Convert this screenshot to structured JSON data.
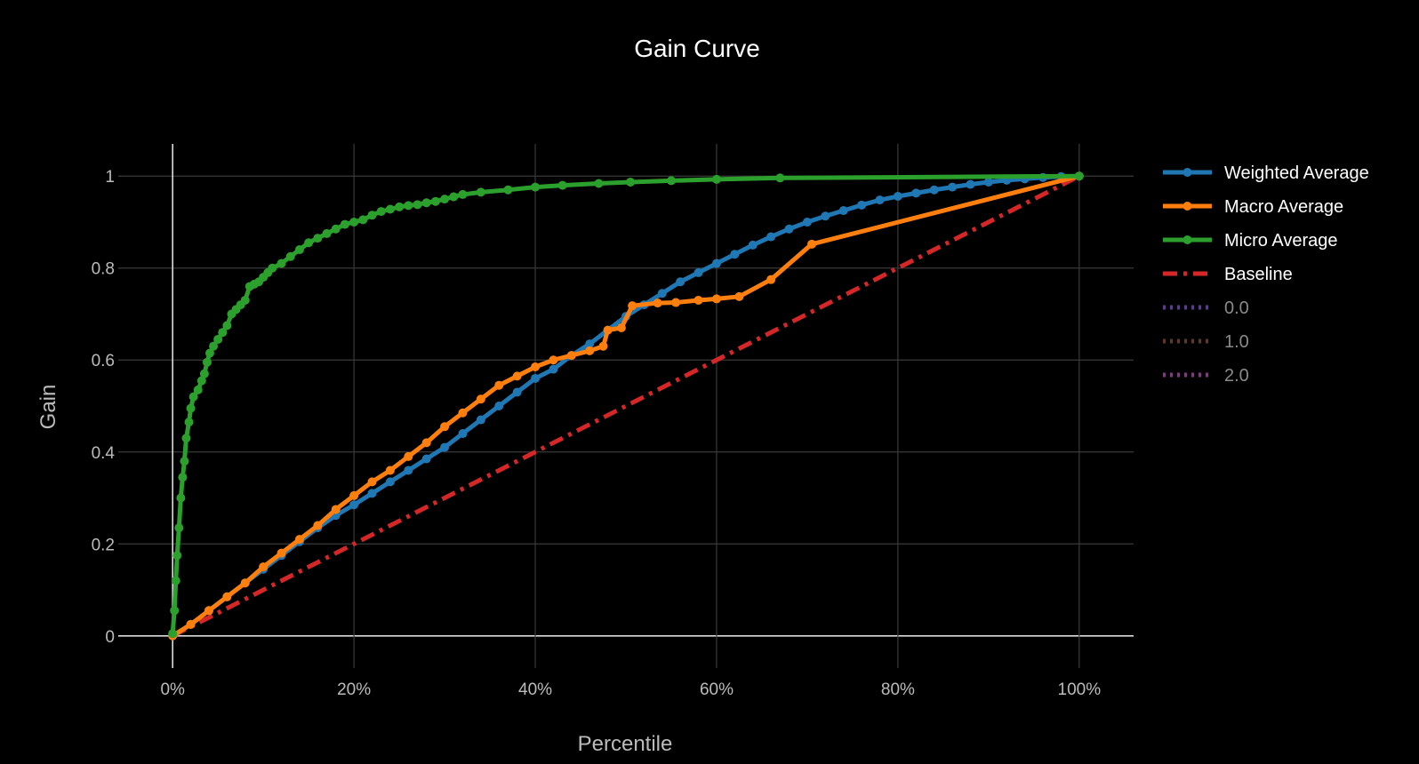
{
  "chart_data": {
    "type": "line",
    "title": "Gain Curve",
    "xlabel": "Percentile",
    "ylabel": "Gain",
    "xlim": [
      -6,
      106
    ],
    "ylim": [
      -0.07,
      1.07
    ],
    "x_ticks": [
      {
        "value": 0,
        "label": "0%"
      },
      {
        "value": 20,
        "label": "20%"
      },
      {
        "value": 40,
        "label": "40%"
      },
      {
        "value": 60,
        "label": "60%"
      },
      {
        "value": 80,
        "label": "80%"
      },
      {
        "value": 100,
        "label": "100%"
      }
    ],
    "y_ticks": [
      {
        "value": 0,
        "label": "0"
      },
      {
        "value": 0.2,
        "label": "0.2"
      },
      {
        "value": 0.4,
        "label": "0.4"
      },
      {
        "value": 0.6,
        "label": "0.6"
      },
      {
        "value": 0.8,
        "label": "0.8"
      },
      {
        "value": 1,
        "label": "1"
      }
    ],
    "grid": true,
    "legend_position": "right",
    "series": [
      {
        "name": "Weighted Average",
        "color": "#1f77b4",
        "style": "solid",
        "markers": true,
        "legend_text_color": "#ffffff",
        "points": [
          [
            0,
            0
          ],
          [
            2,
            0.025
          ],
          [
            4,
            0.055
          ],
          [
            6,
            0.085
          ],
          [
            8,
            0.115
          ],
          [
            10,
            0.145
          ],
          [
            12,
            0.175
          ],
          [
            14,
            0.205
          ],
          [
            16,
            0.235
          ],
          [
            18,
            0.262
          ],
          [
            20,
            0.285
          ],
          [
            22,
            0.31
          ],
          [
            24,
            0.335
          ],
          [
            26,
            0.36
          ],
          [
            28,
            0.385
          ],
          [
            30,
            0.41
          ],
          [
            32,
            0.44
          ],
          [
            34,
            0.47
          ],
          [
            36,
            0.5
          ],
          [
            38,
            0.53
          ],
          [
            40,
            0.56
          ],
          [
            42,
            0.58
          ],
          [
            44,
            0.61
          ],
          [
            46,
            0.635
          ],
          [
            48,
            0.665
          ],
          [
            50,
            0.695
          ],
          [
            52,
            0.72
          ],
          [
            54,
            0.745
          ],
          [
            56,
            0.77
          ],
          [
            58,
            0.79
          ],
          [
            60,
            0.81
          ],
          [
            62,
            0.83
          ],
          [
            64,
            0.85
          ],
          [
            66,
            0.868
          ],
          [
            68,
            0.885
          ],
          [
            70,
            0.9
          ],
          [
            72,
            0.913
          ],
          [
            74,
            0.925
          ],
          [
            76,
            0.937
          ],
          [
            78,
            0.948
          ],
          [
            80,
            0.956
          ],
          [
            82,
            0.963
          ],
          [
            84,
            0.97
          ],
          [
            86,
            0.976
          ],
          [
            88,
            0.982
          ],
          [
            90,
            0.987
          ],
          [
            92,
            0.991
          ],
          [
            94,
            0.994
          ],
          [
            96,
            0.997
          ],
          [
            98,
            0.999
          ],
          [
            100,
            1
          ]
        ]
      },
      {
        "name": "Macro Average",
        "color": "#ff7f0e",
        "style": "solid",
        "markers": true,
        "legend_text_color": "#ffffff",
        "points": [
          [
            0,
            0
          ],
          [
            2,
            0.025
          ],
          [
            4,
            0.055
          ],
          [
            6,
            0.085
          ],
          [
            8,
            0.115
          ],
          [
            10,
            0.15
          ],
          [
            12,
            0.18
          ],
          [
            14,
            0.21
          ],
          [
            16,
            0.24
          ],
          [
            18,
            0.275
          ],
          [
            20,
            0.305
          ],
          [
            22,
            0.335
          ],
          [
            24,
            0.36
          ],
          [
            26,
            0.39
          ],
          [
            28,
            0.42
          ],
          [
            30,
            0.455
          ],
          [
            32,
            0.485
          ],
          [
            34,
            0.515
          ],
          [
            36,
            0.545
          ],
          [
            38,
            0.565
          ],
          [
            40,
            0.585
          ],
          [
            42,
            0.6
          ],
          [
            44,
            0.61
          ],
          [
            46,
            0.62
          ],
          [
            47.5,
            0.63
          ],
          [
            48,
            0.665
          ],
          [
            49.5,
            0.67
          ],
          [
            50.7,
            0.718
          ],
          [
            53.5,
            0.724
          ],
          [
            55.5,
            0.725
          ],
          [
            58,
            0.73
          ],
          [
            60,
            0.733
          ],
          [
            62.5,
            0.738
          ],
          [
            66,
            0.775
          ],
          [
            70.5,
            0.852
          ],
          [
            100,
            1
          ]
        ]
      },
      {
        "name": "Micro Average",
        "color": "#2ca02c",
        "style": "solid",
        "markers": true,
        "legend_text_color": "#ffffff",
        "points": [
          [
            0,
            0.005
          ],
          [
            0.2,
            0.055
          ],
          [
            0.35,
            0.12
          ],
          [
            0.5,
            0.175
          ],
          [
            0.7,
            0.235
          ],
          [
            0.9,
            0.3
          ],
          [
            1.1,
            0.345
          ],
          [
            1.3,
            0.38
          ],
          [
            1.5,
            0.43
          ],
          [
            1.8,
            0.465
          ],
          [
            2.0,
            0.495
          ],
          [
            2.3,
            0.52
          ],
          [
            2.8,
            0.535
          ],
          [
            3.2,
            0.555
          ],
          [
            3.5,
            0.57
          ],
          [
            3.8,
            0.595
          ],
          [
            4.1,
            0.615
          ],
          [
            4.5,
            0.63
          ],
          [
            5,
            0.645
          ],
          [
            5.5,
            0.66
          ],
          [
            6,
            0.675
          ],
          [
            6.5,
            0.7
          ],
          [
            7,
            0.71
          ],
          [
            7.5,
            0.72
          ],
          [
            8,
            0.73
          ],
          [
            8.5,
            0.76
          ],
          [
            9,
            0.765
          ],
          [
            9.5,
            0.77
          ],
          [
            10,
            0.78
          ],
          [
            10.5,
            0.79
          ],
          [
            11,
            0.8
          ],
          [
            12,
            0.81
          ],
          [
            13,
            0.825
          ],
          [
            14,
            0.84
          ],
          [
            15,
            0.855
          ],
          [
            16,
            0.865
          ],
          [
            17,
            0.875
          ],
          [
            18,
            0.885
          ],
          [
            19,
            0.895
          ],
          [
            20,
            0.9
          ],
          [
            21,
            0.905
          ],
          [
            22,
            0.915
          ],
          [
            23,
            0.923
          ],
          [
            24,
            0.928
          ],
          [
            25,
            0.933
          ],
          [
            26,
            0.936
          ],
          [
            27,
            0.938
          ],
          [
            28,
            0.942
          ],
          [
            29,
            0.945
          ],
          [
            30,
            0.95
          ],
          [
            31,
            0.955
          ],
          [
            32,
            0.96
          ],
          [
            34,
            0.965
          ],
          [
            37,
            0.97
          ],
          [
            40,
            0.976
          ],
          [
            43,
            0.98
          ],
          [
            47,
            0.984
          ],
          [
            50.5,
            0.987
          ],
          [
            55,
            0.99
          ],
          [
            60,
            0.993
          ],
          [
            67,
            0.996
          ],
          [
            100,
            1
          ]
        ]
      },
      {
        "name": "Baseline",
        "color": "#d62728",
        "style": "dashdot",
        "markers": false,
        "legend_text_color": "#ffffff",
        "points": [
          [
            0,
            0
          ],
          [
            100,
            1
          ]
        ]
      },
      {
        "name": "0.0",
        "color": "#5b3f86",
        "style": "dotted",
        "markers": false,
        "legend_text_color": "#8a8a8a",
        "points": []
      },
      {
        "name": "1.0",
        "color": "#5a3a2e",
        "style": "dotted",
        "markers": false,
        "legend_text_color": "#8a8a8a",
        "points": []
      },
      {
        "name": "2.0",
        "color": "#7a3f78",
        "style": "dotted",
        "markers": false,
        "legend_text_color": "#8a8a8a",
        "points": []
      }
    ]
  }
}
